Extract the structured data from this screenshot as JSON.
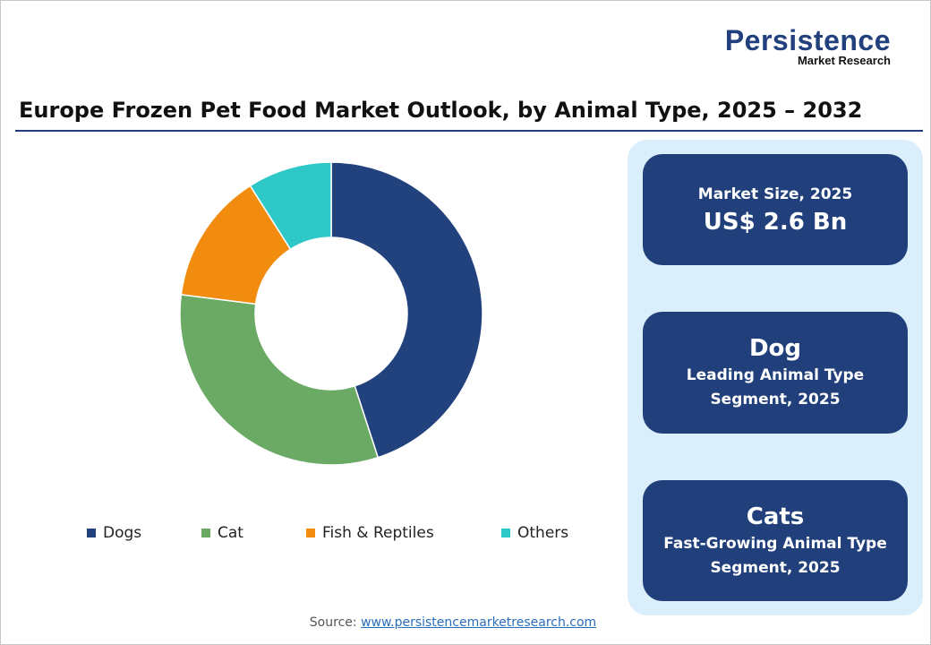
{
  "logo": {
    "line1": "Persistence",
    "line2": "Market Research"
  },
  "title": "Europe Frozen Pet Food Market Outlook, by Animal Type, 2025 – 2032",
  "chart_data": {
    "type": "pie",
    "donut": true,
    "categories": [
      "Dogs",
      "Cat",
      "Fish & Reptiles",
      "Others"
    ],
    "values": [
      45,
      32,
      14,
      9
    ],
    "colors": [
      "#22427e",
      "#6aaa64",
      "#f28c0f",
      "#2ec8c8"
    ],
    "legend": "bottom"
  },
  "cards": [
    {
      "label": "Market Size, 2025",
      "value": "US$ 2.6 Bn"
    },
    {
      "value": "Dog",
      "label1": "Leading Animal Type",
      "label2": "Segment, 2025"
    },
    {
      "value": "Cats",
      "label1": "Fast-Growing Animal Type",
      "label2": "Segment, 2025"
    }
  ],
  "source": {
    "label": "Source:",
    "link": "www.persistencemarketresearch.com"
  },
  "colors": {
    "accent": "#22407e",
    "panel": "#daeefb"
  }
}
